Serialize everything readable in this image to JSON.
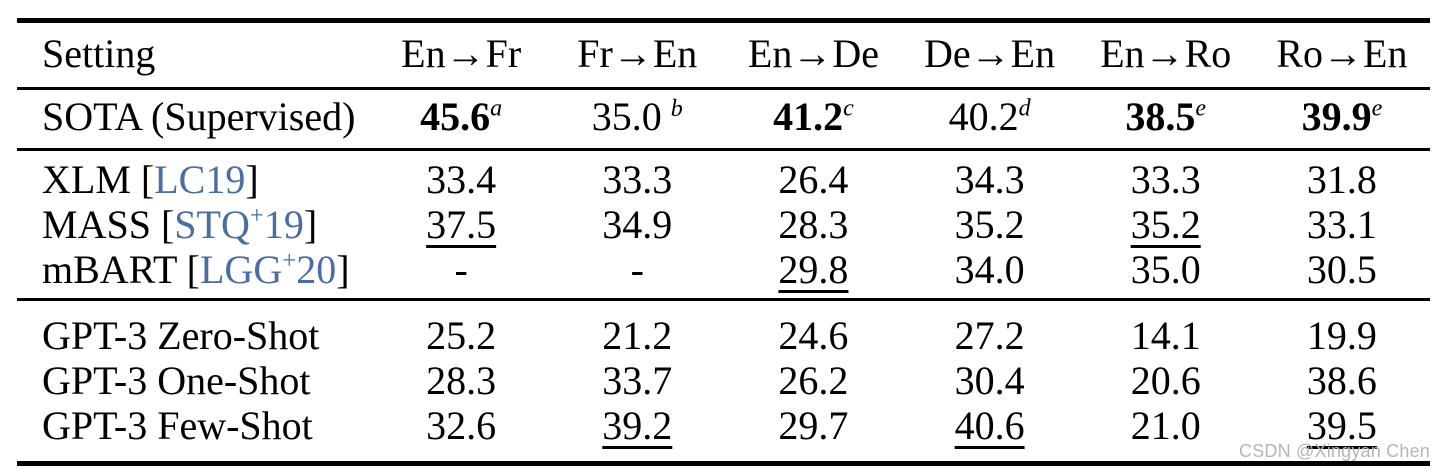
{
  "colors": {
    "citation_blue": "#4a6da6",
    "text": "#000000",
    "rule": "#000000",
    "watermark_gray": "#b3b6b9",
    "background": "#ffffff"
  },
  "watermark": {
    "text": "CSDN @Xingyan Chen"
  },
  "table": {
    "header": [
      "Setting",
      "En→Fr",
      "Fr→En",
      "En→De",
      "De→En",
      "En→Ro",
      "Ro→En"
    ],
    "sections": [
      {
        "name": "sota",
        "rows": [
          {
            "label": {
              "pre": "SOTA (Supervised)"
            },
            "cells": [
              {
                "v": "45.6",
                "sup": "a",
                "bold": true
              },
              {
                "v": "35.0",
                "sup": "b",
                "gap": true
              },
              {
                "v": "41.2",
                "sup": "c",
                "bold": true
              },
              {
                "v": "40.2",
                "sup": "d"
              },
              {
                "v": "38.5",
                "sup": "e",
                "bold": true
              },
              {
                "v": "39.9",
                "sup": "e",
                "bold": true
              }
            ]
          }
        ]
      },
      {
        "name": "baselines",
        "rows": [
          {
            "label": {
              "pre": "XLM [",
              "cite": "LC19",
              "post": "]"
            },
            "cells": [
              {
                "v": "33.4"
              },
              {
                "v": "33.3"
              },
              {
                "v": "26.4"
              },
              {
                "v": "34.3"
              },
              {
                "v": "33.3"
              },
              {
                "v": "31.8"
              }
            ]
          },
          {
            "label": {
              "pre": "MASS [",
              "cite": "STQ",
              "cite_sup": "+",
              "cite2": "19",
              "post": "]"
            },
            "cells": [
              {
                "v": "37.5",
                "underline": true
              },
              {
                "v": "34.9"
              },
              {
                "v": "28.3"
              },
              {
                "v": "35.2"
              },
              {
                "v": "35.2",
                "underline": true
              },
              {
                "v": "33.1"
              }
            ]
          },
          {
            "label": {
              "pre": "mBART [",
              "cite": "LGG",
              "cite_sup": "+",
              "cite2": "20",
              "post": "]"
            },
            "cells": [
              {
                "v": "-"
              },
              {
                "v": "-"
              },
              {
                "v": "29.8",
                "underline": true
              },
              {
                "v": "34.0"
              },
              {
                "v": "35.0"
              },
              {
                "v": "30.5"
              }
            ]
          }
        ]
      },
      {
        "name": "gpt3",
        "rows": [
          {
            "label": {
              "pre": "GPT-3 Zero-Shot"
            },
            "cells": [
              {
                "v": "25.2"
              },
              {
                "v": "21.2"
              },
              {
                "v": "24.6"
              },
              {
                "v": "27.2"
              },
              {
                "v": "14.1"
              },
              {
                "v": "19.9"
              }
            ]
          },
          {
            "label": {
              "pre": "GPT-3 One-Shot"
            },
            "cells": [
              {
                "v": "28.3"
              },
              {
                "v": "33.7"
              },
              {
                "v": "26.2"
              },
              {
                "v": "30.4"
              },
              {
                "v": "20.6"
              },
              {
                "v": "38.6"
              }
            ]
          },
          {
            "label": {
              "pre": "GPT-3 Few-Shot"
            },
            "cells": [
              {
                "v": "32.6"
              },
              {
                "v": "39.2",
                "underline": true
              },
              {
                "v": "29.7"
              },
              {
                "v": "40.6",
                "underline": true
              },
              {
                "v": "21.0"
              },
              {
                "v": "39.5",
                "underline": true
              }
            ]
          }
        ]
      }
    ]
  }
}
